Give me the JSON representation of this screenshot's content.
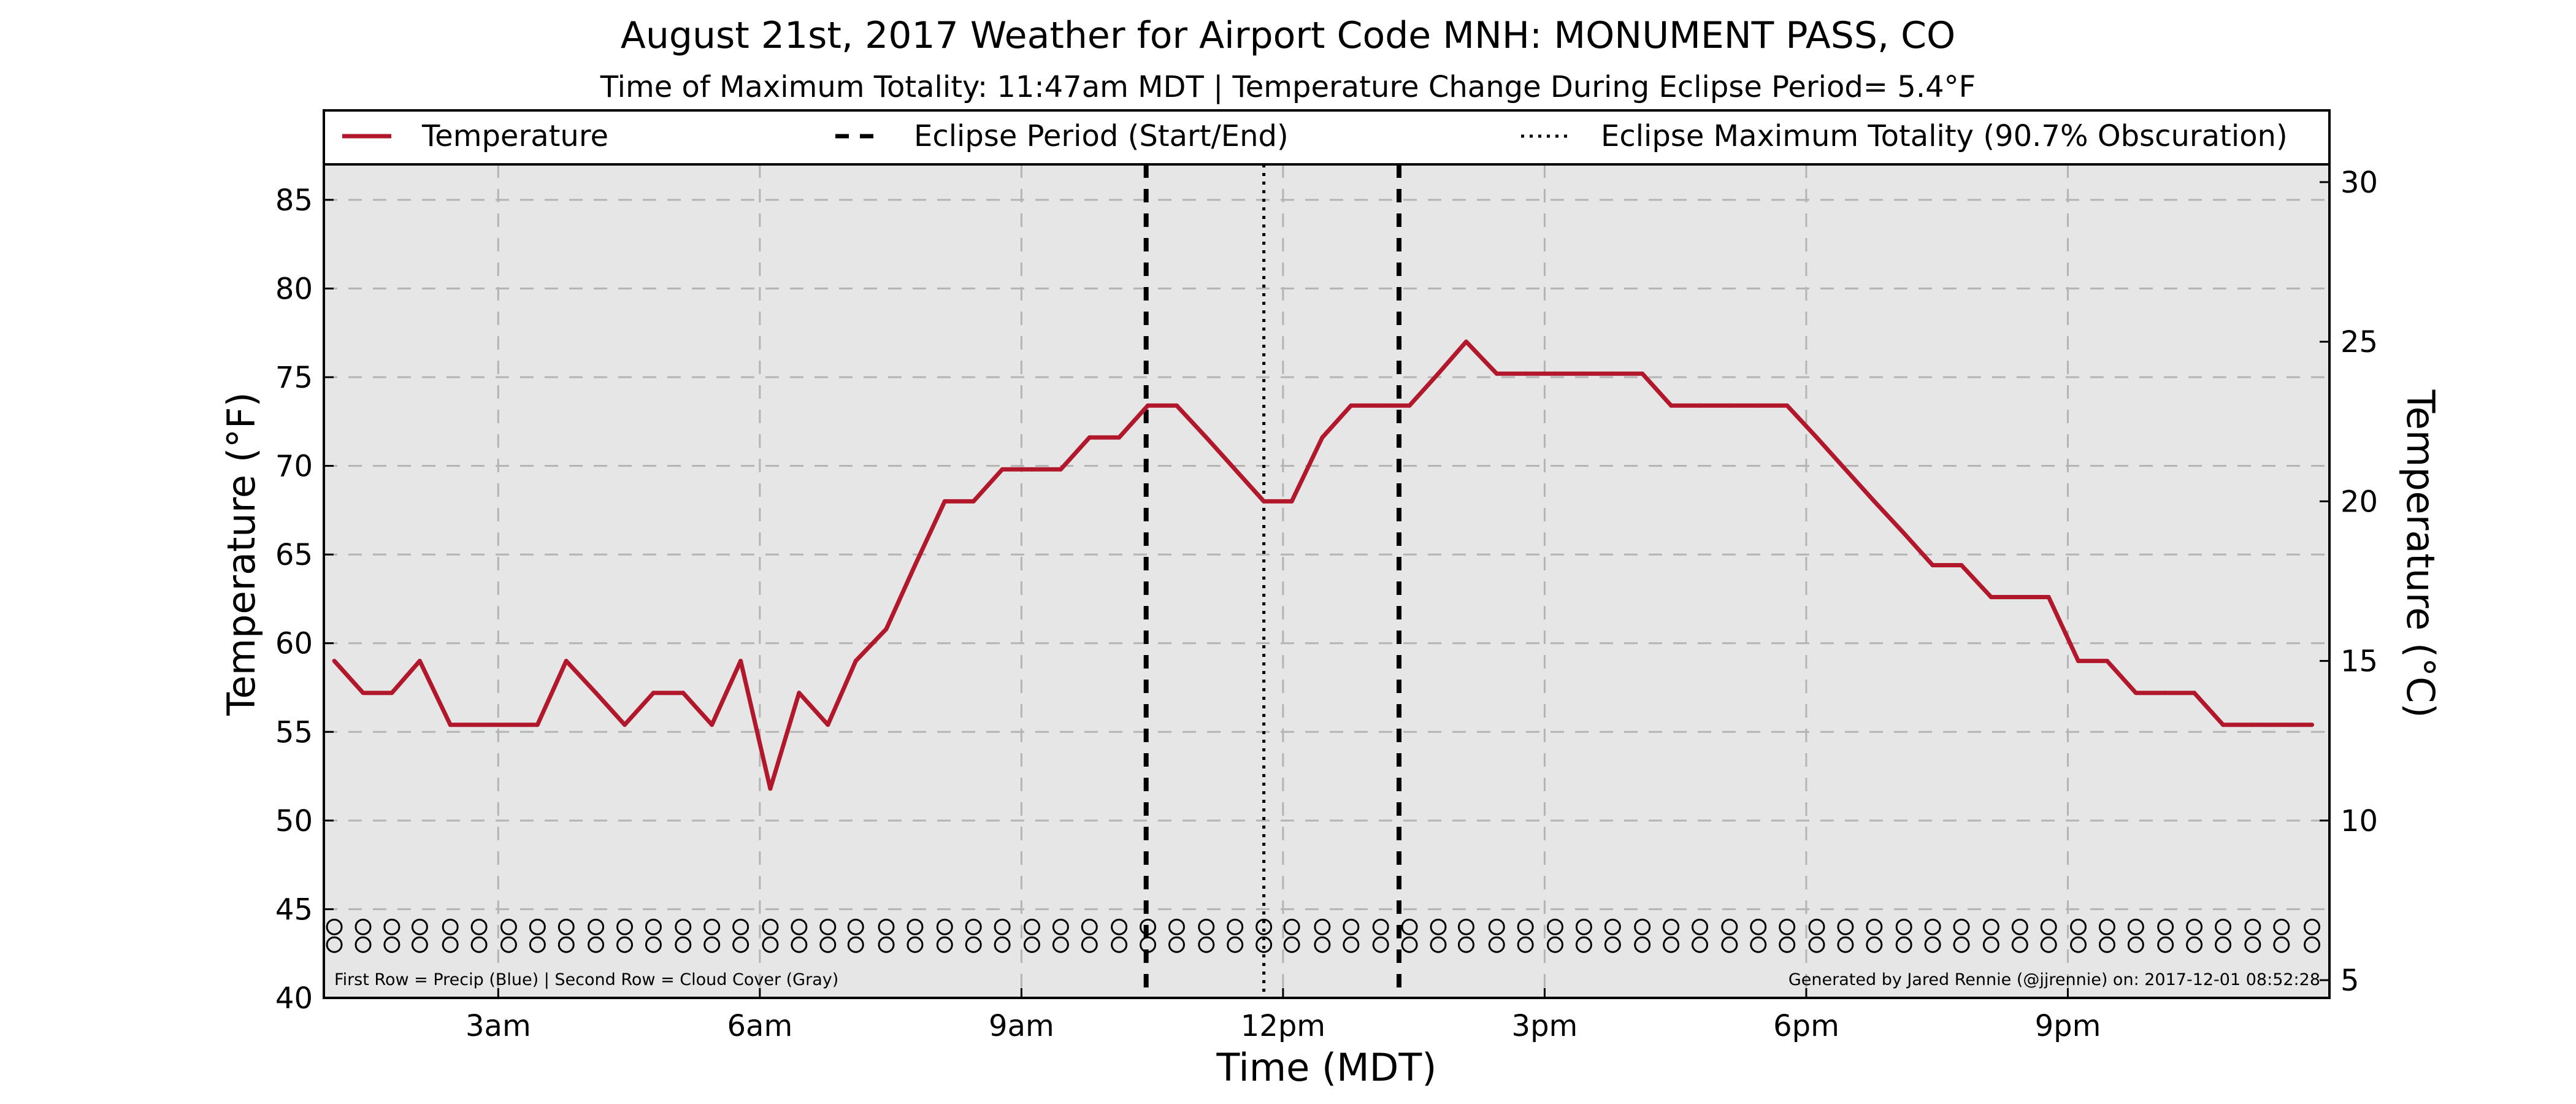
{
  "chart_data": {
    "type": "line",
    "title": "August 21st, 2017 Weather for Airport Code MNH: MONUMENT PASS, CO",
    "subtitle": "Time of Maximum Totality: 11:47am MDT | Temperature Change During Eclipse Period= 5.4°F",
    "xlabel": "Time (MDT)",
    "ylabel": "Temperature (°F)",
    "ylabel_right": "Temperature (°C)",
    "xlim": [
      1,
      24
    ],
    "ylim": [
      40,
      87
    ],
    "ylim_right": [
      4.444,
      30.556
    ],
    "x_ticks": [
      {
        "value": 3,
        "label": "3am"
      },
      {
        "value": 6,
        "label": "6am"
      },
      {
        "value": 9,
        "label": "9am"
      },
      {
        "value": 12,
        "label": "12pm"
      },
      {
        "value": 15,
        "label": "3pm"
      },
      {
        "value": 18,
        "label": "6pm"
      },
      {
        "value": 21,
        "label": "9pm"
      }
    ],
    "y_ticks": [
      40,
      45,
      50,
      55,
      60,
      65,
      70,
      75,
      80,
      85
    ],
    "y_ticks_right": [
      5,
      10,
      15,
      20,
      25,
      30
    ],
    "grid": true,
    "legend_position": "top",
    "series": [
      {
        "name": "Temperature",
        "color": "#b2182b",
        "x": [
          1.12,
          1.45,
          1.78,
          2.1,
          2.45,
          2.78,
          3.12,
          3.45,
          3.78,
          4.12,
          4.45,
          4.78,
          5.12,
          5.45,
          5.78,
          6.12,
          6.45,
          6.78,
          7.1,
          7.45,
          7.78,
          8.12,
          8.45,
          8.78,
          9.12,
          9.45,
          9.78,
          10.12,
          10.45,
          10.78,
          11.12,
          11.45,
          11.78,
          12.1,
          12.45,
          12.78,
          13.12,
          13.45,
          13.78,
          14.1,
          14.45,
          14.78,
          15.12,
          15.45,
          15.78,
          16.12,
          16.45,
          16.78,
          17.12,
          17.45,
          17.78,
          18.12,
          18.45,
          18.78,
          19.12,
          19.45,
          19.78,
          20.12,
          20.45,
          20.78,
          21.12,
          21.45,
          21.78,
          22.12,
          22.45,
          22.78,
          23.12,
          23.45,
          23.8
        ],
        "values": [
          59.0,
          57.2,
          57.2,
          59.0,
          55.4,
          55.4,
          55.4,
          55.4,
          59.0,
          57.2,
          55.4,
          57.2,
          57.2,
          55.4,
          59.0,
          51.8,
          57.2,
          55.4,
          59.0,
          60.8,
          64.4,
          68.0,
          68.0,
          69.8,
          69.8,
          69.8,
          71.6,
          71.6,
          73.4,
          73.4,
          71.6,
          69.8,
          68.0,
          68.0,
          71.6,
          73.4,
          73.4,
          73.4,
          75.2,
          77.0,
          75.2,
          75.2,
          75.2,
          75.2,
          75.2,
          75.2,
          73.4,
          73.4,
          73.4,
          73.4,
          73.4,
          71.6,
          69.8,
          68.0,
          66.2,
          64.4,
          64.4,
          62.6,
          62.6,
          62.6,
          59.0,
          59.0,
          57.2,
          57.2,
          57.2,
          55.4,
          55.4,
          55.4,
          55.4
        ]
      }
    ],
    "vertical_lines": [
      {
        "name": "Eclipse Period (Start/End)",
        "style": "dashed",
        "x": [
          10.43,
          13.33
        ]
      },
      {
        "name": "Eclipse Maximum Totality (90.7% Obscuration)",
        "style": "dotted",
        "x": [
          11.78
        ]
      }
    ],
    "marker_rows": {
      "row1_y": 44.0,
      "row2_y": 43.0,
      "x": [
        1.12,
        1.45,
        1.78,
        2.1,
        2.45,
        2.78,
        3.12,
        3.45,
        3.78,
        4.12,
        4.45,
        4.78,
        5.12,
        5.45,
        5.78,
        6.12,
        6.45,
        6.78,
        7.1,
        7.45,
        7.78,
        8.12,
        8.45,
        8.78,
        9.12,
        9.45,
        9.78,
        10.12,
        10.45,
        10.78,
        11.12,
        11.45,
        11.78,
        12.1,
        12.45,
        12.78,
        13.12,
        13.45,
        13.78,
        14.1,
        14.45,
        14.78,
        15.12,
        15.45,
        15.78,
        16.12,
        16.45,
        16.78,
        17.12,
        17.45,
        17.78,
        18.12,
        18.45,
        18.78,
        19.12,
        19.45,
        19.78,
        20.12,
        20.45,
        20.78,
        21.12,
        21.45,
        21.78,
        22.12,
        22.45,
        22.78,
        23.12,
        23.45,
        23.8
      ]
    },
    "annotations": {
      "bottom_left": "First Row = Precip (Blue) | Second Row = Cloud Cover (Gray)",
      "bottom_right": "Generated by Jared Rennie (@jjrennie) on: 2017-12-01 08:52:28"
    }
  }
}
